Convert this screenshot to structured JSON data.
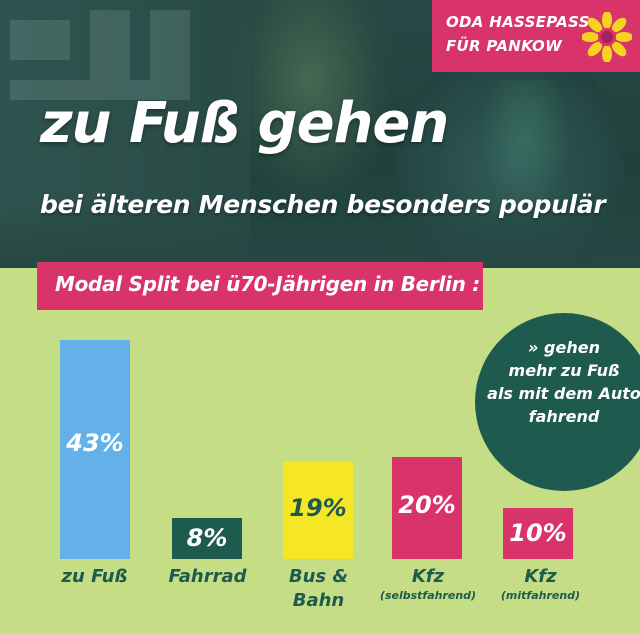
{
  "badge": {
    "line1": "ODA HASSEPASS",
    "line2": "FÜR PANKOW"
  },
  "headline": {
    "title": "zu Fuß gehen",
    "subtitle": "bei älteren Menschen besonders populär"
  },
  "banner": {
    "text": "Modal Split bei ü70-Jährigen in Berlin :"
  },
  "callout": {
    "lines": [
      "» gehen",
      "mehr zu Fuß",
      "als mit dem Auto",
      "fahrend"
    ]
  },
  "colors": {
    "panel": "#c5de86",
    "pink": "#d9346a",
    "dark_green": "#1e5a4e",
    "light_blue": "#63b1e8",
    "yellow": "#f5e626",
    "white": "#ffffff"
  },
  "chart_data": {
    "type": "bar",
    "title": "Modal Split bei ü70-Jährigen in Berlin :",
    "categories": [
      "zu Fuß",
      "Fahrrad",
      "Bus & Bahn",
      "Kfz (selbstfahrend)",
      "Kfz (mitfahrend)"
    ],
    "category_lines": [
      {
        "main": "zu Fuß",
        "main2": "",
        "sub": ""
      },
      {
        "main": "Fahrrad",
        "main2": "",
        "sub": ""
      },
      {
        "main": "Bus &",
        "main2": "Bahn",
        "sub": ""
      },
      {
        "main": "Kfz",
        "main2": "",
        "sub": "(selbstfahrend)"
      },
      {
        "main": "Kfz",
        "main2": "",
        "sub": "(mitfahrend)"
      }
    ],
    "values": [
      43,
      8,
      19,
      20,
      10
    ],
    "labels": [
      "43%",
      "8%",
      "19%",
      "20%",
      "10%"
    ],
    "bar_colors": [
      "#63b1e8",
      "#1e5a4e",
      "#f5e626",
      "#d9346a",
      "#d9346a"
    ],
    "label_colors": [
      "#ffffff",
      "#ffffff",
      "#1e5a4e",
      "#ffffff",
      "#ffffff"
    ],
    "ylim": [
      0,
      43
    ]
  }
}
